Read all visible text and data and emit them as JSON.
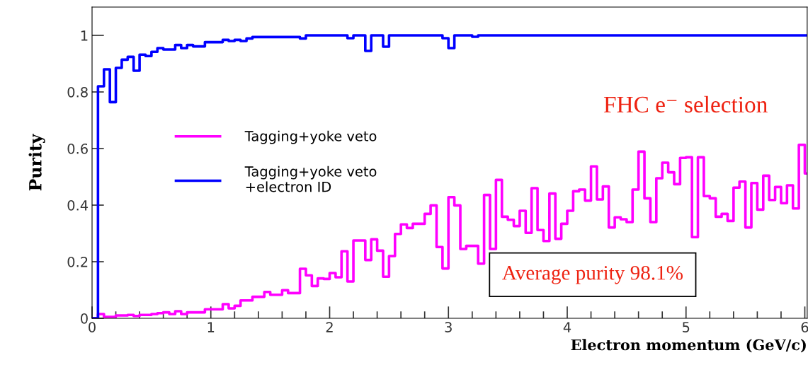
{
  "chart_data": {
    "type": "step",
    "xlabel": "Electron momentum (GeV/c)",
    "ylabel": "Purity",
    "xlim": [
      0,
      6.02
    ],
    "ylim": [
      0,
      1.1
    ],
    "xticks": [
      0,
      1,
      2,
      3,
      4,
      5,
      6
    ],
    "yticks": [
      0,
      0.2,
      0.4,
      0.6,
      0.8,
      1
    ],
    "grid": false,
    "legend": "left",
    "annotations": [
      "FHC e⁻ selection",
      "Average purity 98.1%"
    ],
    "series": [
      {
        "name": "Tagging+yoke veto",
        "color": "#ff00ff",
        "x": [
          0,
          0.05,
          0.1,
          0.2,
          0.3,
          0.35,
          0.4,
          0.5,
          0.55,
          0.6,
          0.65,
          0.7,
          0.75,
          0.8,
          0.95,
          1.1,
          1.15,
          1.2,
          1.25,
          1.35,
          1.45,
          1.5,
          1.6,
          1.65,
          1.75,
          1.8,
          1.85,
          1.9,
          1.95,
          2.0,
          2.05,
          2.1,
          2.15,
          2.2,
          2.3,
          2.35,
          2.4,
          2.45,
          2.5,
          2.55,
          2.6,
          2.65,
          2.7,
          2.8,
          2.85,
          2.9,
          2.95,
          3.0,
          3.05,
          3.1,
          3.15,
          3.25,
          3.3,
          3.35,
          3.4,
          3.45,
          3.5,
          3.55,
          3.6,
          3.65,
          3.7,
          3.75,
          3.8,
          3.85,
          3.9,
          3.95,
          4.0,
          4.05,
          4.1,
          4.15,
          4.2,
          4.25,
          4.3,
          4.35,
          4.4,
          4.45,
          4.5,
          4.55,
          4.6,
          4.65,
          4.7,
          4.75,
          4.8,
          4.85,
          4.9,
          4.95,
          5.0,
          5.05,
          5.1,
          5.15,
          5.2,
          5.25,
          5.3,
          5.35,
          5.4,
          5.45,
          5.5,
          5.55,
          5.6,
          5.65,
          5.7,
          5.75,
          5.8,
          5.85,
          5.9,
          5.95,
          6.0,
          6.02
        ],
        "values": [
          0,
          0.015,
          0.005,
          0.01,
          0.012,
          0.008,
          0.012,
          0.015,
          0.018,
          0.021,
          0.015,
          0.025,
          0.015,
          0.021,
          0.032,
          0.05,
          0.035,
          0.044,
          0.063,
          0.076,
          0.093,
          0.083,
          0.099,
          0.089,
          0.175,
          0.152,
          0.114,
          0.141,
          0.139,
          0.16,
          0.145,
          0.237,
          0.13,
          0.275,
          0.206,
          0.279,
          0.239,
          0.147,
          0.22,
          0.298,
          0.332,
          0.319,
          0.334,
          0.369,
          0.399,
          0.252,
          0.176,
          0.428,
          0.399,
          0.245,
          0.256,
          0.193,
          0.436,
          0.245,
          0.489,
          0.359,
          0.348,
          0.326,
          0.38,
          0.302,
          0.46,
          0.312,
          0.273,
          0.441,
          0.281,
          0.334,
          0.38,
          0.449,
          0.455,
          0.416,
          0.537,
          0.42,
          0.466,
          0.321,
          0.357,
          0.35,
          0.34,
          0.455,
          0.589,
          0.424,
          0.34,
          0.495,
          0.55,
          0.516,
          0.474,
          0.567,
          0.569,
          0.287,
          0.569,
          0.432,
          0.424,
          0.359,
          0.369,
          0.344,
          0.462,
          0.483,
          0.321,
          0.478,
          0.384,
          0.504,
          0.418,
          0.464,
          0.407,
          0.47,
          0.388,
          0.613,
          0.512,
          0.512
        ]
      },
      {
        "name": "Tagging+yoke veto\n+electron ID",
        "color": "#0000ff",
        "x": [
          0,
          0.05,
          0.1,
          0.15,
          0.2,
          0.25,
          0.3,
          0.35,
          0.4,
          0.45,
          0.5,
          0.55,
          0.6,
          0.7,
          0.75,
          0.8,
          0.85,
          0.95,
          1.1,
          1.15,
          1.2,
          1.25,
          1.3,
          1.35,
          1.75,
          1.8,
          2.15,
          2.2,
          2.3,
          2.35,
          2.45,
          2.5,
          2.95,
          3.0,
          3.05,
          3.2,
          3.25,
          6.02
        ],
        "values": [
          0,
          0.82,
          0.88,
          0.764,
          0.885,
          0.914,
          0.924,
          0.875,
          0.932,
          0.927,
          0.942,
          0.955,
          0.95,
          0.966,
          0.955,
          0.966,
          0.961,
          0.976,
          0.984,
          0.98,
          0.984,
          0.98,
          0.989,
          0.994,
          0.989,
          1.0,
          0.99,
          1.0,
          0.945,
          1.0,
          0.96,
          1.0,
          0.99,
          0.955,
          1.0,
          0.995,
          1.0,
          1.0
        ]
      }
    ]
  }
}
